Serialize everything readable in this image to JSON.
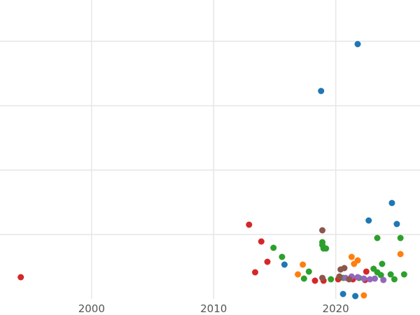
{
  "chart_data": {
    "type": "scatter",
    "title": "",
    "xlabel": "",
    "ylabel": "",
    "xlim": [
      1992.5,
      2026.9
    ],
    "ylim": [
      0,
      450
    ],
    "x_ticks": [
      2000,
      2010,
      2020
    ],
    "x_tick_labels": [
      "2000",
      "2010",
      "2020"
    ],
    "y_gridlines": [
      92,
      184,
      276,
      368
    ],
    "grid": true,
    "legend": "none",
    "colors": {
      "blue": "#1f77b4",
      "orange": "#ff7f0e",
      "green": "#2ca02c",
      "red": "#d62728",
      "purple": "#9467bd",
      "brown": "#8c564b",
      "grid": "#e6e6e6",
      "tick_text": "#555555"
    },
    "series": [
      {
        "color": "#1f77b4",
        "points": [
          {
            "x": 2021.8,
            "y": 364
          },
          {
            "x": 2018.8,
            "y": 297
          },
          {
            "x": 2024.6,
            "y": 137
          },
          {
            "x": 2022.7,
            "y": 112
          },
          {
            "x": 2025.0,
            "y": 107
          },
          {
            "x": 2015.8,
            "y": 49
          },
          {
            "x": 2020.6,
            "y": 7
          },
          {
            "x": 2021.6,
            "y": 4
          }
        ]
      },
      {
        "color": "#ff7f0e",
        "points": [
          {
            "x": 2021.3,
            "y": 60
          },
          {
            "x": 2021.8,
            "y": 55
          },
          {
            "x": 2021.5,
            "y": 50
          },
          {
            "x": 2025.3,
            "y": 64
          },
          {
            "x": 2017.3,
            "y": 49
          },
          {
            "x": 2016.9,
            "y": 35
          },
          {
            "x": 2022.3,
            "y": 5
          }
        ]
      },
      {
        "color": "#2ca02c",
        "points": [
          {
            "x": 2023.4,
            "y": 87
          },
          {
            "x": 2025.3,
            "y": 87
          },
          {
            "x": 2018.9,
            "y": 81
          },
          {
            "x": 2018.9,
            "y": 77
          },
          {
            "x": 2019.0,
            "y": 72
          },
          {
            "x": 2019.2,
            "y": 72
          },
          {
            "x": 2014.9,
            "y": 73
          },
          {
            "x": 2015.6,
            "y": 60
          },
          {
            "x": 2023.8,
            "y": 50
          },
          {
            "x": 2023.1,
            "y": 43
          },
          {
            "x": 2023.4,
            "y": 38
          },
          {
            "x": 2023.7,
            "y": 34
          },
          {
            "x": 2024.5,
            "y": 35
          },
          {
            "x": 2025.6,
            "y": 35
          },
          {
            "x": 2017.8,
            "y": 39
          },
          {
            "x": 2017.4,
            "y": 29
          },
          {
            "x": 2019.6,
            "y": 28
          },
          {
            "x": 2020.6,
            "y": 30
          },
          {
            "x": 2024.8,
            "y": 28
          },
          {
            "x": 2021.9,
            "y": 30
          }
        ]
      },
      {
        "color": "#d62728",
        "points": [
          {
            "x": 2012.9,
            "y": 106
          },
          {
            "x": 2013.9,
            "y": 82
          },
          {
            "x": 2014.4,
            "y": 53
          },
          {
            "x": 2013.4,
            "y": 38
          },
          {
            "x": 1994.2,
            "y": 31
          },
          {
            "x": 2022.5,
            "y": 39
          },
          {
            "x": 2018.3,
            "y": 26
          },
          {
            "x": 2019.0,
            "y": 26
          },
          {
            "x": 2020.2,
            "y": 28
          },
          {
            "x": 2021.4,
            "y": 28
          },
          {
            "x": 2022.4,
            "y": 27
          }
        ]
      },
      {
        "color": "#9467bd",
        "points": [
          {
            "x": 2021.3,
            "y": 32
          },
          {
            "x": 2021.8,
            "y": 31
          },
          {
            "x": 2022.3,
            "y": 29
          },
          {
            "x": 2022.8,
            "y": 28
          },
          {
            "x": 2023.9,
            "y": 27
          },
          {
            "x": 2023.2,
            "y": 29
          },
          {
            "x": 2020.8,
            "y": 30
          }
        ]
      },
      {
        "color": "#8c564b",
        "points": [
          {
            "x": 2018.9,
            "y": 98
          },
          {
            "x": 2020.4,
            "y": 42
          },
          {
            "x": 2020.7,
            "y": 44
          },
          {
            "x": 2018.9,
            "y": 30
          },
          {
            "x": 2020.3,
            "y": 32
          },
          {
            "x": 2021.1,
            "y": 28
          }
        ]
      }
    ]
  }
}
